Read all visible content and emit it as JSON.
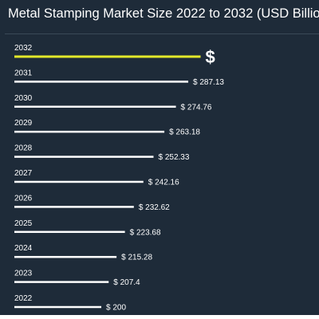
{
  "chart_data": {
    "type": "bar",
    "orientation": "horizontal",
    "title": "Metal Stamping Market Size 2022 to 2032 (USD Billio",
    "categories": [
      "2032",
      "2031",
      "2030",
      "2029",
      "2028",
      "2027",
      "2026",
      "2025",
      "2024",
      "2023",
      "2022"
    ],
    "values": [
      299.5,
      287.13,
      274.76,
      263.18,
      252.33,
      242.16,
      232.62,
      223.68,
      215.28,
      207.4,
      200
    ],
    "value_labels": [
      "$",
      "$ 287.13",
      "$ 274.76",
      "$ 263.18",
      "$ 252.33",
      "$ 242.16",
      "$ 232.62",
      "$ 223.68",
      "$ 215.28",
      "$ 207.4",
      "$ 200"
    ],
    "highlight_index": 0,
    "colors": {
      "background": "#1e2b39",
      "bar": "#ffffff",
      "highlight": "#e3e82a",
      "text": "#ffffff"
    }
  }
}
